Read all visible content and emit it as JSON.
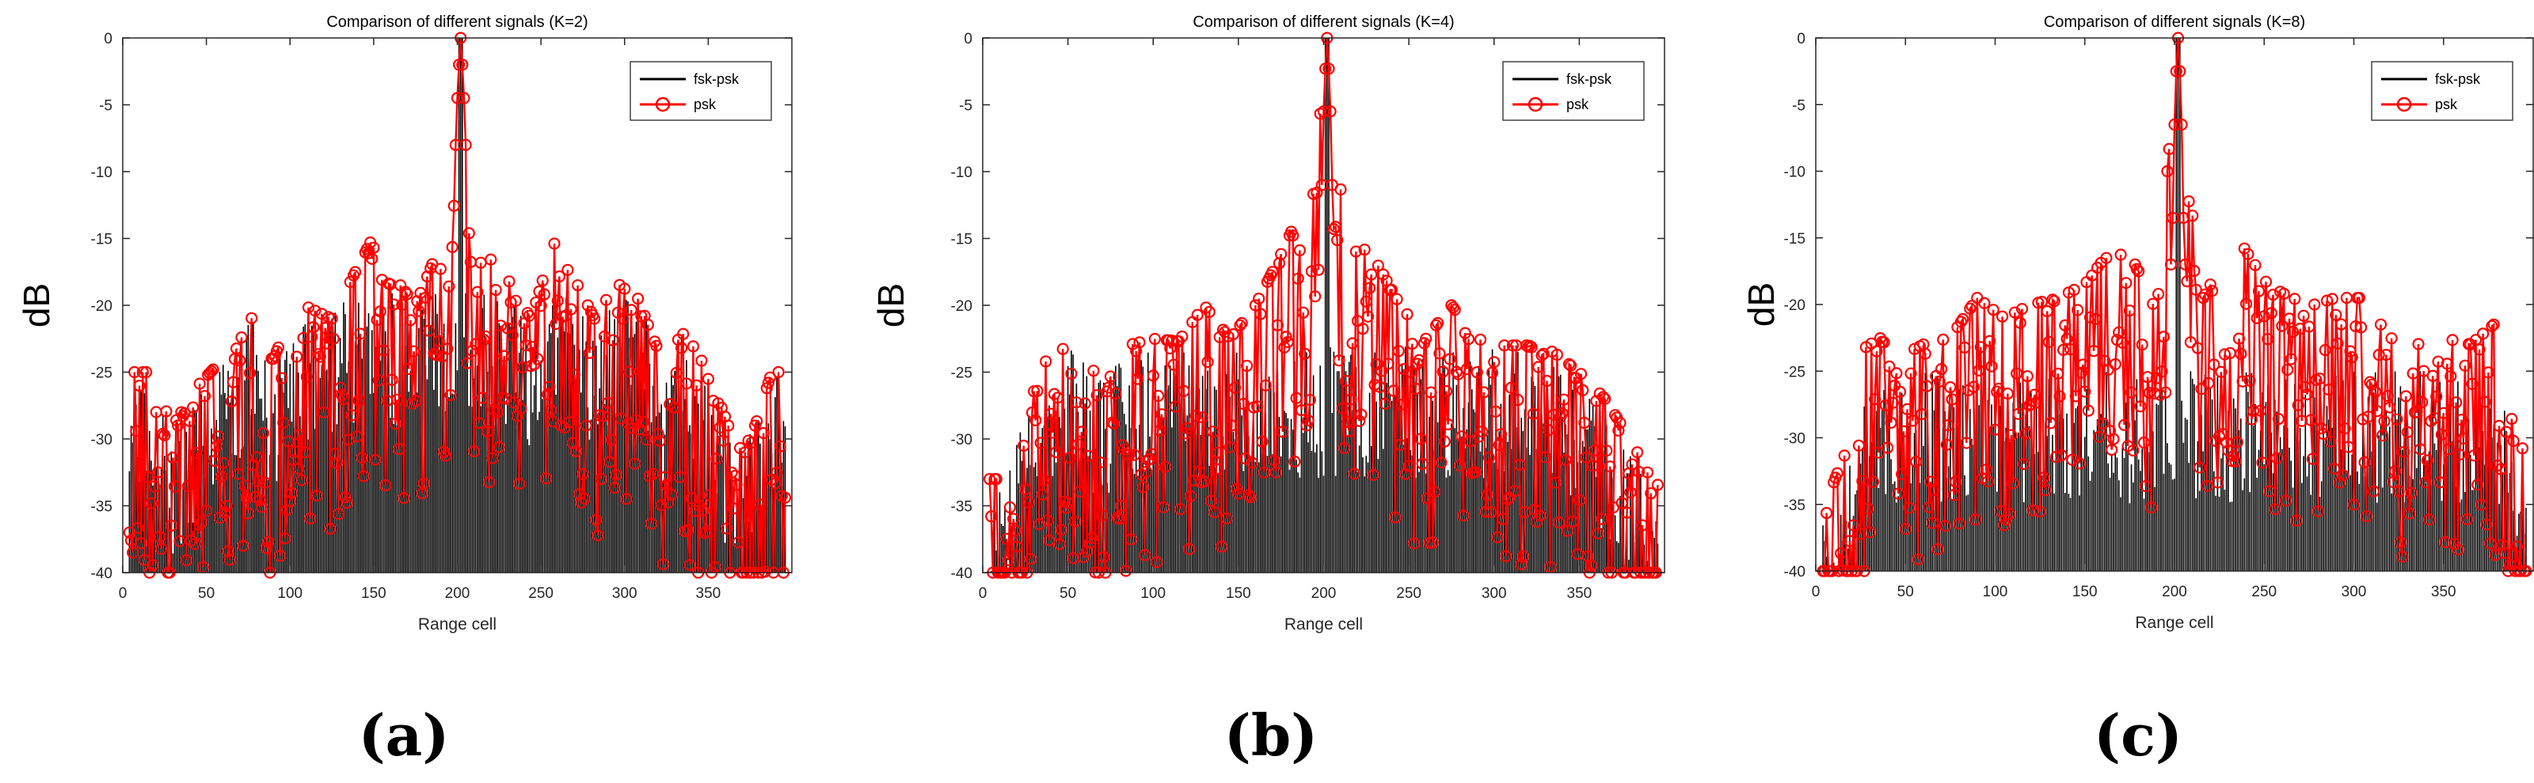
{
  "figure": {
    "panel_labels": [
      "(a)",
      "(b)",
      "(c)"
    ]
  },
  "colors": {
    "psk": "#ff0000",
    "fsk_psk": "#000000",
    "axes": "#262626",
    "background": "#ffffff"
  },
  "chart_data": [
    {
      "type": "line",
      "title": "Comparison of different signals (K=2)",
      "xlabel": "Range cell",
      "ylabel": "dB",
      "xlim": [
        0,
        400
      ],
      "ylim": [
        -40,
        0
      ],
      "xticks": [
        0,
        50,
        100,
        150,
        200,
        250,
        300,
        350
      ],
      "yticks": [
        0,
        -5,
        -10,
        -15,
        -20,
        -25,
        -30,
        -35,
        -40
      ],
      "legend": {
        "position": "top-right",
        "entries": [
          "fsk-psk",
          "psk"
        ]
      },
      "peak_cell": 202,
      "envelope_peaks": [
        [
          15,
          -25
        ],
        [
          30,
          -29
        ],
        [
          45,
          -26
        ],
        [
          60,
          -24
        ],
        [
          75,
          -20.5
        ],
        [
          90,
          -24
        ],
        [
          105,
          -19.8
        ],
        [
          125,
          -21
        ],
        [
          135,
          -18.5
        ],
        [
          148,
          -15.3
        ],
        [
          160,
          -17.5
        ],
        [
          175,
          -20
        ],
        [
          188,
          -16
        ],
        [
          196,
          -14.5
        ],
        [
          202,
          0
        ],
        [
          208,
          -14
        ],
        [
          216,
          -16
        ],
        [
          230,
          -18
        ],
        [
          244,
          -21
        ],
        [
          258,
          -15.3
        ],
        [
          270,
          -18
        ],
        [
          282,
          -21
        ],
        [
          295,
          -18.3
        ],
        [
          308,
          -19.5
        ],
        [
          322,
          -24
        ],
        [
          336,
          -22
        ],
        [
          350,
          -25
        ],
        [
          365,
          -30
        ],
        [
          378,
          -29
        ],
        [
          388,
          -25
        ]
      ],
      "series": [
        {
          "name": "fsk-psk",
          "color": "#000000",
          "marker": "none",
          "sidelobe_level_db": -27
        },
        {
          "name": "psk",
          "color": "#ff0000",
          "marker": "circle",
          "main_lobe": [
            -8,
            -4.5,
            -2,
            0,
            -2,
            -4.5,
            -8
          ],
          "sidelobe_level_db": -25
        }
      ]
    },
    {
      "type": "line",
      "title": "Comparison of different signals (K=4)",
      "xlabel": "Range cell",
      "ylabel": "dB",
      "xlim": [
        0,
        400
      ],
      "ylim": [
        -40,
        0
      ],
      "xticks": [
        0,
        50,
        100,
        150,
        200,
        250,
        300,
        350
      ],
      "yticks": [
        0,
        -5,
        -10,
        -15,
        -20,
        -25,
        -30,
        -35,
        -40
      ],
      "legend": {
        "position": "top-right",
        "entries": [
          "fsk-psk",
          "psk"
        ]
      },
      "peak_cell": 202,
      "envelope_peaks": [
        [
          10,
          -33
        ],
        [
          25,
          -27
        ],
        [
          40,
          -23.5
        ],
        [
          55,
          -23
        ],
        [
          70,
          -25
        ],
        [
          85,
          -23
        ],
        [
          100,
          -22.5
        ],
        [
          115,
          -22.7
        ],
        [
          130,
          -20
        ],
        [
          145,
          -22.5
        ],
        [
          160,
          -20
        ],
        [
          172,
          -17
        ],
        [
          181,
          -14.5
        ],
        [
          190,
          -17
        ],
        [
          202,
          0
        ],
        [
          214,
          -17
        ],
        [
          223,
          -14.5
        ],
        [
          232,
          -17
        ],
        [
          245,
          -20
        ],
        [
          260,
          -22.5
        ],
        [
          275,
          -20
        ],
        [
          290,
          -22.5
        ],
        [
          305,
          -23
        ],
        [
          320,
          -23
        ],
        [
          335,
          -23.5
        ],
        [
          350,
          -25
        ],
        [
          365,
          -27
        ],
        [
          380,
          -30
        ],
        [
          392,
          -33
        ]
      ],
      "series": [
        {
          "name": "fsk-psk",
          "color": "#000000",
          "marker": "none",
          "sidelobe_level_db": -31
        },
        {
          "name": "psk",
          "color": "#ff0000",
          "marker": "circle",
          "main_lobe": [
            -11,
            -5.5,
            -2.3,
            0,
            -2.3,
            -5.5,
            -11
          ],
          "sidelobe_level_db": -27
        }
      ]
    },
    {
      "type": "line",
      "title": "Comparison of different signals (K=8)",
      "xlabel": "Range cell",
      "ylabel": "dB",
      "xlim": [
        0,
        400
      ],
      "ylim": [
        -40,
        0
      ],
      "xticks": [
        0,
        50,
        100,
        150,
        200,
        250,
        300,
        350
      ],
      "yticks": [
        0,
        -5,
        -10,
        -15,
        -20,
        -25,
        -30,
        -35,
        -40
      ],
      "legend": {
        "position": "top-right",
        "entries": [
          "fsk-psk",
          "psk"
        ]
      },
      "peak_cell": 202,
      "envelope_peaks": [
        [
          8,
          -34
        ],
        [
          20,
          -30
        ],
        [
          30,
          -21.5
        ],
        [
          45,
          -24
        ],
        [
          60,
          -23
        ],
        [
          75,
          -22.5
        ],
        [
          90,
          -19.5
        ],
        [
          105,
          -21
        ],
        [
          120,
          -20
        ],
        [
          135,
          -19.5
        ],
        [
          150,
          -18.5
        ],
        [
          165,
          -15.8
        ],
        [
          178,
          -17
        ],
        [
          190,
          -20
        ],
        [
          202,
          0
        ],
        [
          214,
          -20
        ],
        [
          226,
          -17
        ],
        [
          239,
          -15.8
        ],
        [
          252,
          -18.5
        ],
        [
          265,
          -19.5
        ],
        [
          278,
          -20
        ],
        [
          290,
          -19.5
        ],
        [
          305,
          -19.5
        ],
        [
          320,
          -22.5
        ],
        [
          335,
          -23
        ],
        [
          350,
          -22.5
        ],
        [
          365,
          -23
        ],
        [
          378,
          -21.5
        ],
        [
          390,
          -30
        ]
      ],
      "series": [
        {
          "name": "fsk-psk",
          "color": "#000000",
          "marker": "none",
          "sidelobe_level_db": -33
        },
        {
          "name": "psk",
          "color": "#ff0000",
          "marker": "circle",
          "main_lobe": [
            -17,
            -13.5,
            -6.5,
            -2.5,
            0,
            -2.5,
            -6.5,
            -13.5,
            -17
          ],
          "sidelobe_level_db": -28
        }
      ]
    }
  ]
}
